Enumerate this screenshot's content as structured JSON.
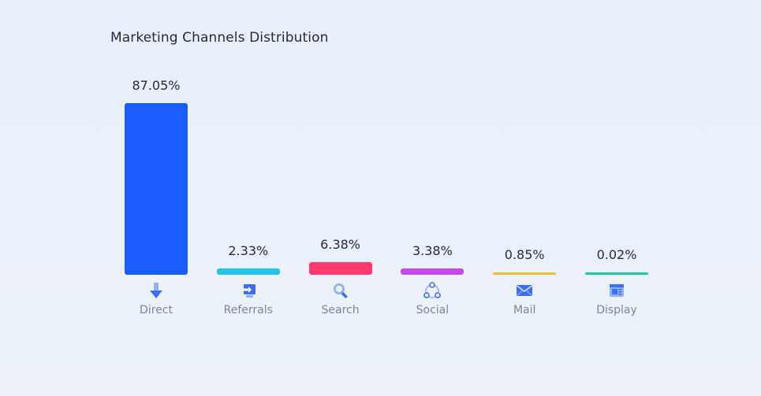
{
  "chart_data": {
    "type": "bar",
    "title": "Marketing Channels Distribution",
    "xlabel": "",
    "ylabel": "",
    "ylim": [
      0,
      87.05
    ],
    "grid": false,
    "categories": [
      "Direct",
      "Referrals",
      "Search",
      "Social",
      "Mail",
      "Display"
    ],
    "values": [
      87.05,
      2.33,
      6.38,
      3.38,
      0.85,
      0.02
    ],
    "value_labels": [
      "87.05%",
      "2.33%",
      "6.38%",
      "3.38%",
      "0.85%",
      "0.02%"
    ],
    "colors": [
      "#1a5cff",
      "#22c4ee",
      "#ff3a6e",
      "#c44af0",
      "#f7b731",
      "#1fc99a"
    ],
    "icons": [
      "arrow-down-icon",
      "login-arrow-icon",
      "magnifier-icon",
      "share-network-icon",
      "envelope-icon",
      "browser-window-icon"
    ]
  }
}
